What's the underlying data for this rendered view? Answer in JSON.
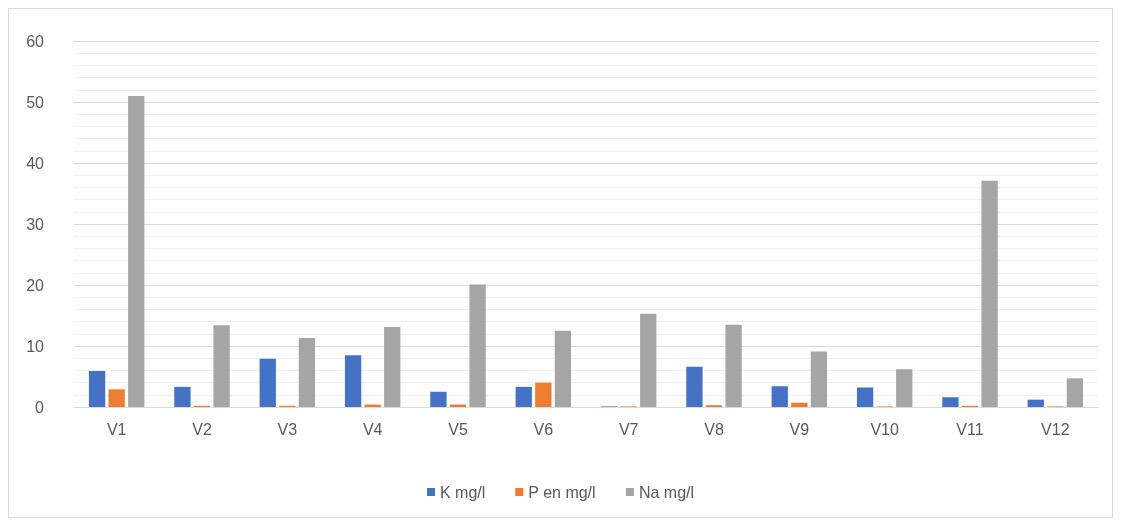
{
  "chart_data": {
    "type": "bar",
    "categories": [
      "V1",
      "V2",
      "V3",
      "V4",
      "V5",
      "V6",
      "V7",
      "V8",
      "V9",
      "V10",
      "V11",
      "V12"
    ],
    "series": [
      {
        "name": "K mg/l",
        "color": "#4472c4",
        "values": [
          5.9,
          3.3,
          7.9,
          8.5,
          2.5,
          3.3,
          0.1,
          6.6,
          3.4,
          3.2,
          1.6,
          1.2
        ]
      },
      {
        "name": "P en mg/l",
        "color": "#ed7d31",
        "values": [
          2.9,
          0.2,
          0.2,
          0.4,
          0.4,
          4.0,
          0.1,
          0.3,
          0.7,
          0.1,
          0.2,
          0.1
        ]
      },
      {
        "name": "Na mg/l",
        "color": "#a5a5a5",
        "values": [
          51,
          13.4,
          11.3,
          13.1,
          20.1,
          12.5,
          15.3,
          13.5,
          9.1,
          6.2,
          37.1,
          4.7
        ]
      }
    ],
    "ylim": [
      0,
      60
    ],
    "yticks": [
      0,
      10,
      20,
      30,
      40,
      50,
      60
    ],
    "grid": "y",
    "legend": "bottom"
  }
}
